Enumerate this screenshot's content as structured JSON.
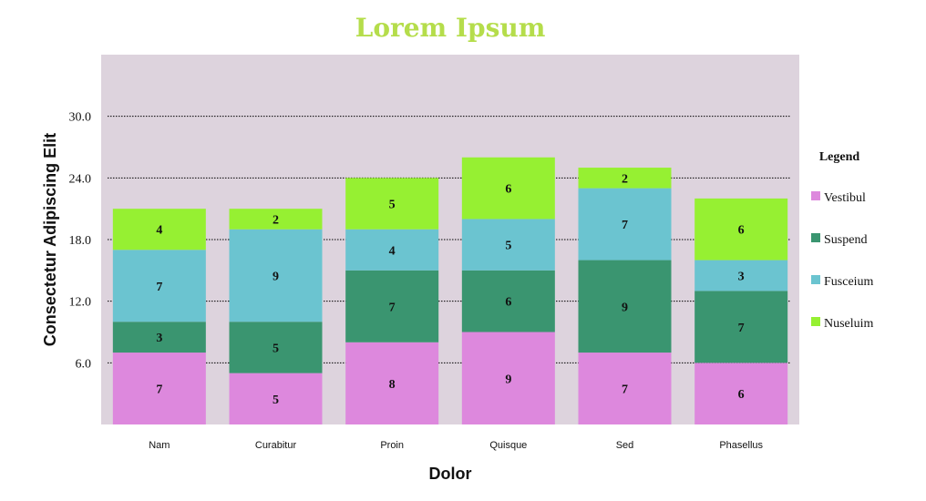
{
  "chart_data": {
    "type": "bar",
    "stacked": true,
    "title": "Lorem Ipsum",
    "xlabel": "Dolor",
    "ylabel": "Consectetur Adipiscing Elit",
    "ylim": [
      0,
      36
    ],
    "yticks": [
      6.0,
      12.0,
      18.0,
      24.0,
      30.0
    ],
    "ytick_labels": [
      "6.0",
      "12.0",
      "18.0",
      "24.0",
      "30.0"
    ],
    "grid": "horizontal-dotted",
    "legend_title": "Legend",
    "legend_position": "right",
    "categories": [
      "Nam",
      "Curabitur",
      "Proin",
      "Quisque",
      "Sed",
      "Phasellus"
    ],
    "series": [
      {
        "name": "Vestibul",
        "color": "#dd88dd",
        "values": [
          7,
          5,
          8,
          9,
          7,
          6
        ]
      },
      {
        "name": "Suspend",
        "color": "#3a9570",
        "values": [
          3,
          5,
          7,
          6,
          9,
          7
        ]
      },
      {
        "name": "Fusceium",
        "color": "#6bc4d0",
        "values": [
          7,
          9,
          4,
          5,
          7,
          3
        ]
      },
      {
        "name": "Nuseluim",
        "color": "#96f032",
        "values": [
          4,
          2,
          5,
          6,
          2,
          6
        ]
      }
    ],
    "colors": {
      "title": "#b5dd4b",
      "plot_background": "#ddd3dd"
    }
  }
}
